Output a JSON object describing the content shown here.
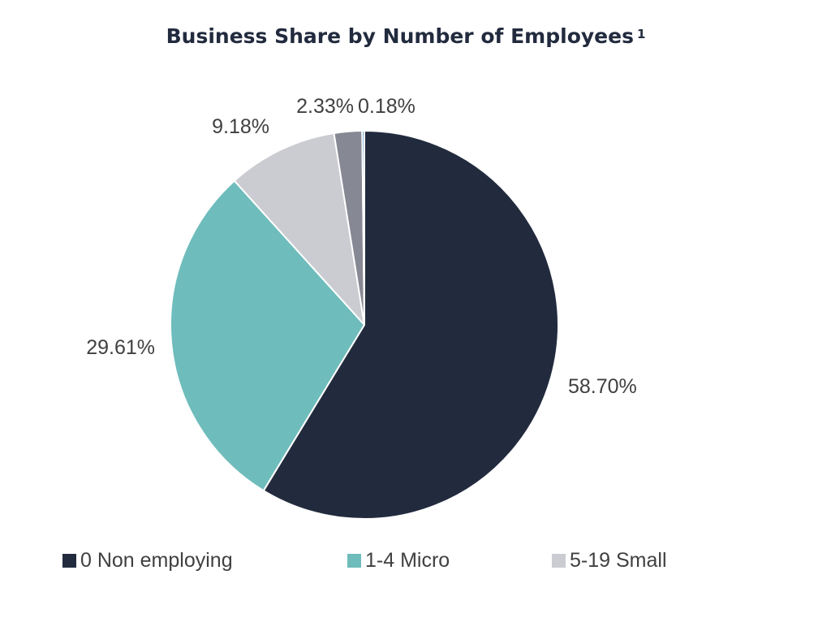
{
  "chart_data": {
    "type": "pie",
    "title": "Business Share by Number of Employees",
    "title_footnote": "1",
    "slices": [
      {
        "label": "0 Non employing",
        "value": 58.7,
        "display": "58.70%",
        "color": "#222b3e"
      },
      {
        "label": "1-4 Micro",
        "value": 29.61,
        "display": "29.61%",
        "color": "#6fbcbc"
      },
      {
        "label": "5-19 Small",
        "value": 9.18,
        "display": "9.18%",
        "color": "#cbccd2"
      },
      {
        "label": "",
        "value": 2.33,
        "display": "2.33%",
        "color": "#868894"
      },
      {
        "label": "",
        "value": 0.18,
        "display": "0.18%",
        "color": "#3f8bc9"
      }
    ],
    "legend": [
      {
        "label": "0 Non employing",
        "color": "#222b3e"
      },
      {
        "label": "1-4 Micro",
        "color": "#6fbcbc"
      },
      {
        "label": "5-19 Small",
        "color": "#cbccd2"
      }
    ],
    "legend_position": "bottom",
    "start_angle": "top",
    "direction": "clockwise"
  }
}
